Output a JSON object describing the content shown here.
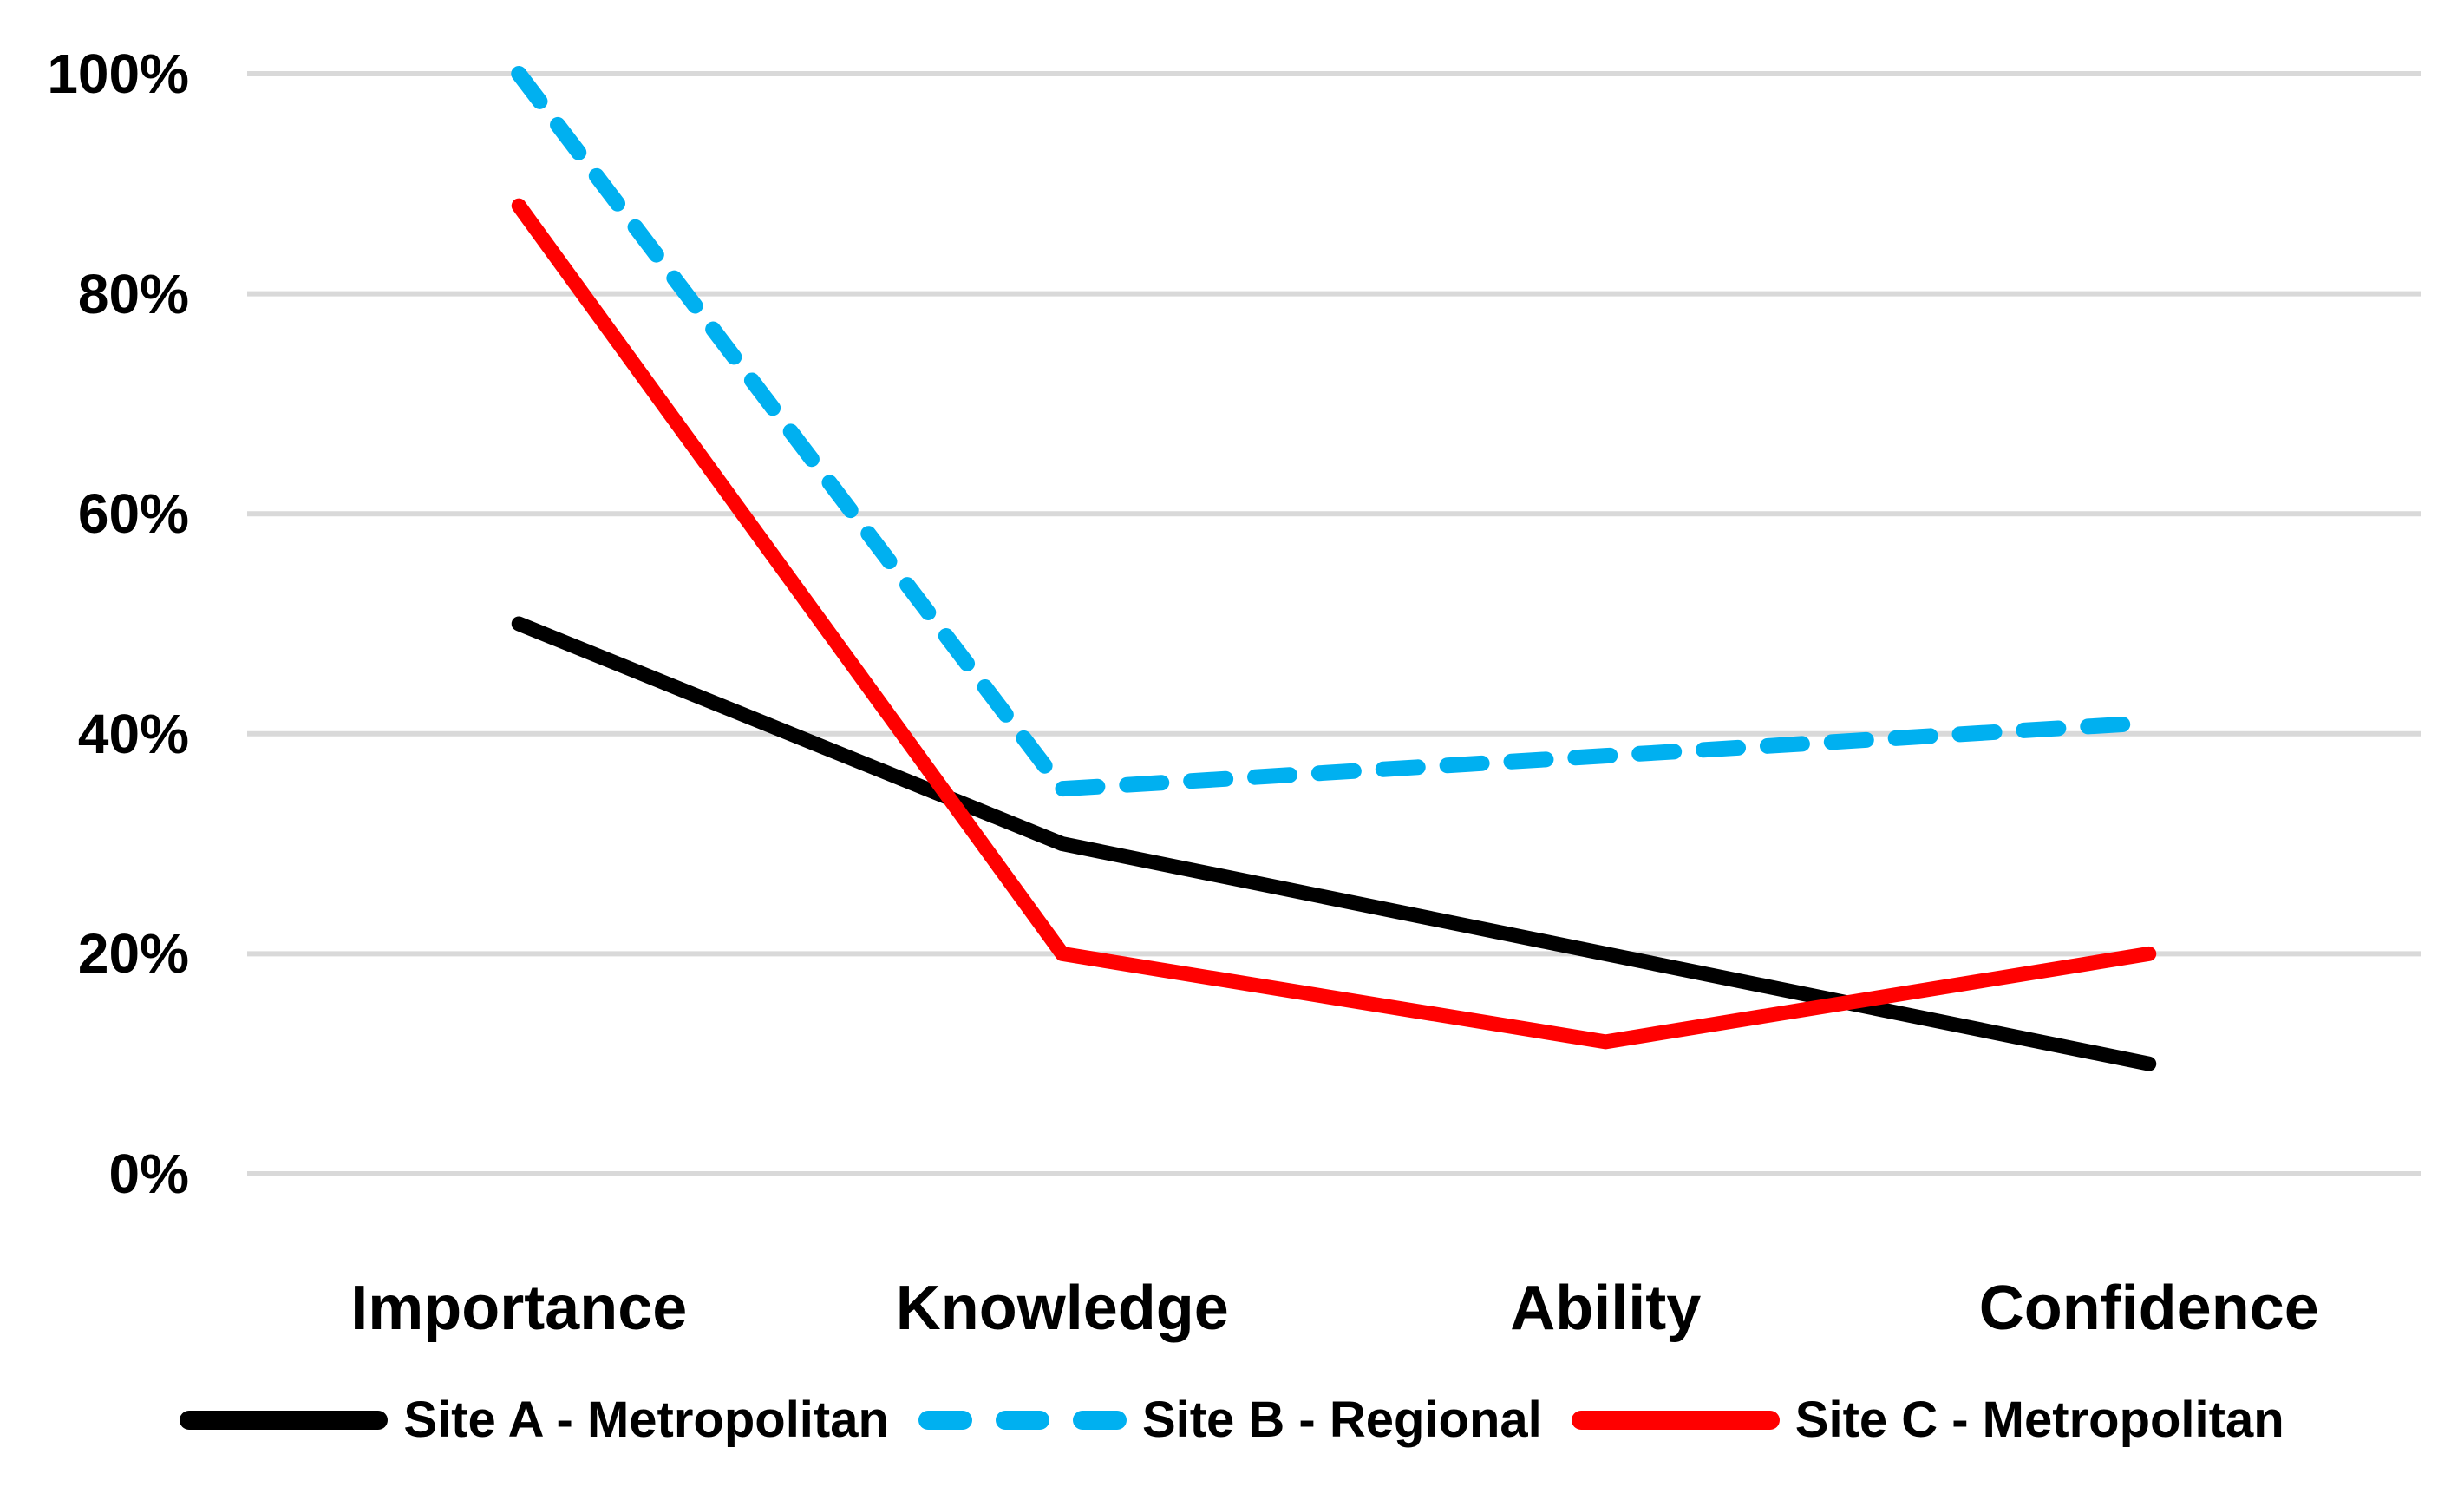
{
  "chart_data": {
    "type": "line",
    "title": "",
    "xlabel": "",
    "ylabel": "",
    "categories": [
      "Importance",
      "Knowledge",
      "Ability",
      "Confidence"
    ],
    "series": [
      {
        "name": "Site A - Metropolitan",
        "color": "#000000",
        "dashed": false,
        "values": [
          50,
          30,
          20,
          10
        ]
      },
      {
        "name": "Site B - Regional",
        "color": "#00B0F0",
        "dashed": true,
        "values": [
          100,
          35,
          38,
          41
        ]
      },
      {
        "name": "Site C - Metropolitan",
        "color": "#FF0000",
        "dashed": false,
        "values": [
          88,
          20,
          12,
          20
        ]
      }
    ],
    "ylim": [
      0,
      100
    ],
    "yticks": [
      100,
      80,
      60,
      40,
      20,
      0
    ],
    "ytick_labels": [
      "100%",
      "80%",
      "60%",
      "40%",
      "20%",
      "0%"
    ],
    "grid": "horizontal",
    "gridline_color": "#D9D9D9",
    "legend_position": "bottom"
  }
}
